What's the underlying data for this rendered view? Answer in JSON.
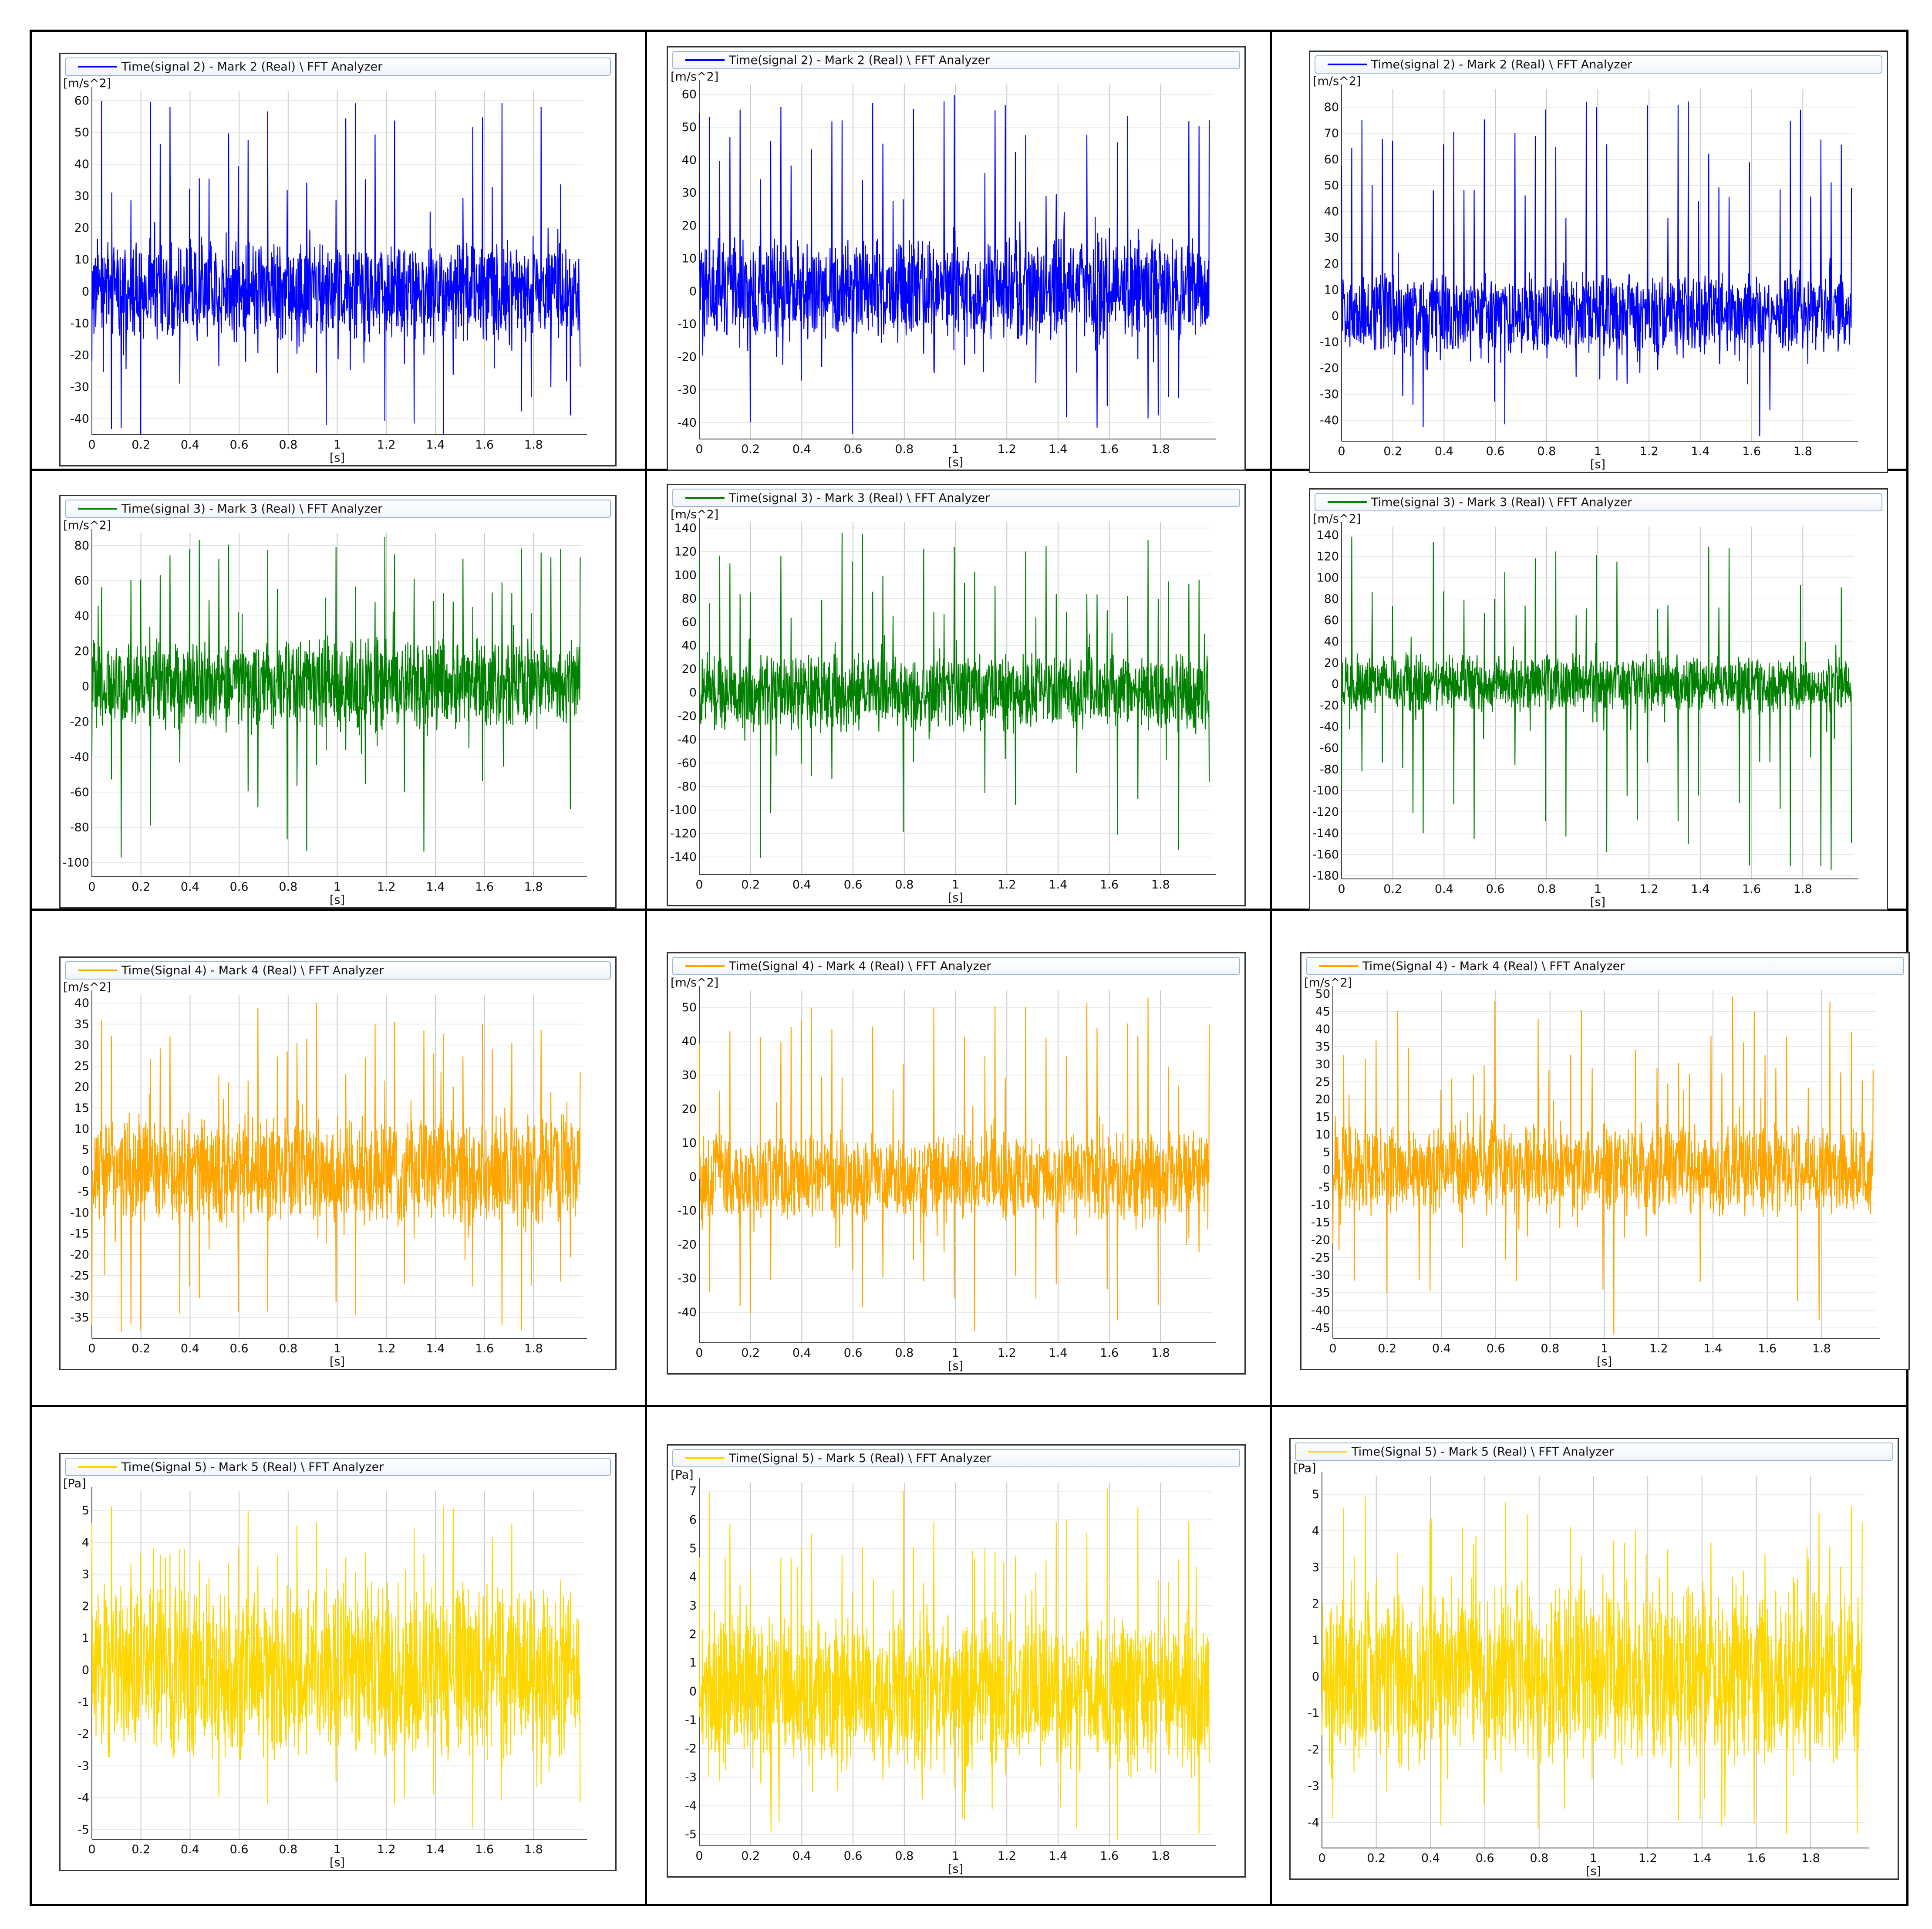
{
  "chart_data": [
    {
      "type": "line",
      "legend": "Time(signal 2) - Mark 2 (Real) \\ FFT Analyzer",
      "ylabel": "[m/s^2]",
      "xlabel": "[s]",
      "color": "#0000ff",
      "yticks": [
        "60",
        "50",
        "40",
        "30",
        "20",
        "10",
        "0",
        "-10",
        "-20",
        "-30",
        "-40"
      ],
      "xticks": [
        "0",
        "0.2",
        "0.4",
        "0.6",
        "0.8",
        "1",
        "1.2",
        "1.4",
        "1.6",
        "1.8"
      ],
      "xlim": [
        0,
        2
      ],
      "ylim": [
        -45,
        63
      ],
      "band": [
        -14,
        15
      ],
      "peak_max": 60,
      "peak_min": -45,
      "grid": "on"
    },
    {
      "type": "line",
      "legend": "Time(signal 2) - Mark 2 (Real) \\ FFT Analyzer",
      "ylabel": "[m/s^2]",
      "xlabel": "[s]",
      "color": "#0000ff",
      "yticks": [
        "60",
        "50",
        "40",
        "30",
        "20",
        "10",
        "0",
        "-10",
        "-20",
        "-30",
        "-40"
      ],
      "xticks": [
        "0",
        "0.2",
        "0.4",
        "0.6",
        "0.8",
        "1",
        "1.2",
        "1.4",
        "1.6",
        "1.8"
      ],
      "xlim": [
        0,
        2
      ],
      "ylim": [
        -45,
        63
      ],
      "band": [
        -14,
        15
      ],
      "peak_max": 60,
      "peak_min": -45,
      "grid": "on"
    },
    {
      "type": "line",
      "legend": "Time(signal 2) - Mark 2 (Real) \\ FFT Analyzer",
      "ylabel": "[m/s^2]",
      "xlabel": "[s]",
      "color": "#0000ff",
      "yticks": [
        "80",
        "70",
        "60",
        "50",
        "40",
        "30",
        "20",
        "10",
        "0",
        "-10",
        "-20",
        "-30",
        "-40"
      ],
      "xticks": [
        "0",
        "0.2",
        "0.4",
        "0.6",
        "0.8",
        "1",
        "1.2",
        "1.4",
        "1.6",
        "1.8"
      ],
      "xlim": [
        0,
        2
      ],
      "ylim": [
        -48,
        87
      ],
      "band": [
        -14,
        15
      ],
      "peak_max": 83,
      "peak_min": -48,
      "grid": "on"
    },
    {
      "type": "line",
      "legend": "Time(signal 3) - Mark 3 (Real) \\ FFT Analyzer",
      "ylabel": "[m/s^2]",
      "xlabel": "[s]",
      "color": "#008000",
      "yticks": [
        "80",
        "60",
        "40",
        "20",
        "0",
        "-20",
        "-40",
        "-60",
        "-80",
        "-100"
      ],
      "xticks": [
        "0",
        "0.2",
        "0.4",
        "0.6",
        "0.8",
        "1",
        "1.2",
        "1.4",
        "1.6",
        "1.8"
      ],
      "xlim": [
        0,
        2
      ],
      "ylim": [
        -108,
        87
      ],
      "band": [
        -22,
        25
      ],
      "peak_max": 85,
      "peak_min": -100,
      "grid": "on"
    },
    {
      "type": "line",
      "legend": "Time(signal 3) - Mark 3 (Real) \\ FFT Analyzer",
      "ylabel": "[m/s^2]",
      "xlabel": "[s]",
      "color": "#008000",
      "yticks": [
        "140",
        "120",
        "100",
        "80",
        "60",
        "40",
        "20",
        "0",
        "-20",
        "-40",
        "-60",
        "-80",
        "-100",
        "-120",
        "-140"
      ],
      "xticks": [
        "0",
        "0.2",
        "0.4",
        "0.6",
        "0.8",
        "1",
        "1.2",
        "1.4",
        "1.6",
        "1.8"
      ],
      "xlim": [
        0,
        2
      ],
      "ylim": [
        -155,
        145
      ],
      "band": [
        -30,
        30
      ],
      "peak_max": 138,
      "peak_min": -150,
      "grid": "on"
    },
    {
      "type": "line",
      "legend": "Time(signal 3) - Mark 3 (Real) \\ FFT Analyzer",
      "ylabel": "[m/s^2]",
      "xlabel": "[s]",
      "color": "#008000",
      "yticks": [
        "140",
        "120",
        "100",
        "80",
        "60",
        "40",
        "20",
        "0",
        "-20",
        "-40",
        "-60",
        "-80",
        "-100",
        "-120",
        "-140",
        "-160",
        "-180"
      ],
      "xticks": [
        "0",
        "0.2",
        "0.4",
        "0.6",
        "0.8",
        "1",
        "1.2",
        "1.4",
        "1.6",
        "1.8"
      ],
      "xlim": [
        0,
        2
      ],
      "ylim": [
        -183,
        148
      ],
      "band": [
        -25,
        25
      ],
      "peak_max": 140,
      "peak_min": -180,
      "grid": "on"
    },
    {
      "type": "line",
      "legend": "Time(Signal 4) - Mark 4 (Real) \\ FFT Analyzer",
      "ylabel": "[m/s^2]",
      "xlabel": "[s]",
      "color": "#ffa500",
      "yticks": [
        "40",
        "35",
        "30",
        "25",
        "20",
        "15",
        "10",
        "5",
        "0",
        "-5",
        "-10",
        "-15",
        "-20",
        "-25",
        "-30",
        "-35"
      ],
      "xticks": [
        "0",
        "0.2",
        "0.4",
        "0.6",
        "0.8",
        "1",
        "1.2",
        "1.4",
        "1.6",
        "1.8"
      ],
      "xlim": [
        0,
        2
      ],
      "ylim": [
        -40,
        42
      ],
      "band": [
        -12,
        12
      ],
      "peak_max": 41,
      "peak_min": -39,
      "grid": "on"
    },
    {
      "type": "line",
      "legend": "Time(Signal 4) - Mark 4 (Real) \\ FFT Analyzer",
      "ylabel": "[m/s^2]",
      "xlabel": "[s]",
      "color": "#ffa500",
      "yticks": [
        "50",
        "40",
        "30",
        "20",
        "10",
        "0",
        "-10",
        "-20",
        "-30",
        "-40"
      ],
      "xticks": [
        "0",
        "0.2",
        "0.4",
        "0.6",
        "0.8",
        "1",
        "1.2",
        "1.4",
        "1.6",
        "1.8"
      ],
      "xlim": [
        0,
        2
      ],
      "ylim": [
        -49,
        55
      ],
      "band": [
        -12,
        12
      ],
      "peak_max": 53,
      "peak_min": -47,
      "grid": "on"
    },
    {
      "type": "line",
      "legend": "Time(Signal 4) - Mark 4 (Real) \\ FFT Analyzer",
      "ylabel": "[m/s^2]",
      "xlabel": "[s]",
      "color": "#ffa500",
      "yticks": [
        "50",
        "45",
        "40",
        "35",
        "30",
        "25",
        "20",
        "15",
        "10",
        "5",
        "0",
        "-5",
        "-10",
        "-15",
        "-20",
        "-25",
        "-30",
        "-35",
        "-40",
        "-45"
      ],
      "xticks": [
        "0",
        "0.2",
        "0.4",
        "0.6",
        "0.8",
        "1",
        "1.2",
        "1.4",
        "1.6",
        "1.8"
      ],
      "xlim": [
        0,
        2
      ],
      "ylim": [
        -48,
        51
      ],
      "band": [
        -12,
        12
      ],
      "peak_max": 50,
      "peak_min": -47,
      "grid": "on"
    },
    {
      "type": "line",
      "legend": "Time(Signal 5) - Mark 5 (Real) \\ FFT Analyzer",
      "ylabel": "[Pa]",
      "xlabel": "[s]",
      "color": "#ffd700",
      "yticks": [
        "5",
        "4",
        "3",
        "2",
        "1",
        "0",
        "-1",
        "-2",
        "-3",
        "-4",
        "-5"
      ],
      "xticks": [
        "0",
        "0.2",
        "0.4",
        "0.6",
        "0.8",
        "1",
        "1.2",
        "1.4",
        "1.6",
        "1.8"
      ],
      "xlim": [
        0,
        2
      ],
      "ylim": [
        -5.3,
        5.6
      ],
      "band": [
        -2.5,
        2.5
      ],
      "peak_max": 5.3,
      "peak_min": -5.1,
      "grid": "on"
    },
    {
      "type": "line",
      "legend": "Time(Signal 5) - Mark 5 (Real) \\ FFT Analyzer",
      "ylabel": "[Pa]",
      "xlabel": "[s]",
      "color": "#ffd700",
      "yticks": [
        "7",
        "6",
        "5",
        "4",
        "3",
        "2",
        "1",
        "0",
        "-1",
        "-2",
        "-3",
        "-4",
        "-5"
      ],
      "xticks": [
        "0",
        "0.2",
        "0.4",
        "0.6",
        "0.8",
        "1",
        "1.2",
        "1.4",
        "1.6",
        "1.8"
      ],
      "xlim": [
        0,
        2
      ],
      "ylim": [
        -5.4,
        7.3
      ],
      "band": [
        -2.5,
        2.5
      ],
      "peak_max": 7.1,
      "peak_min": -5.2,
      "grid": "on"
    },
    {
      "type": "line",
      "legend": "Time(Signal 5) - Mark 5 (Real) \\ FFT Analyzer",
      "ylabel": "[Pa]",
      "xlabel": "[s]",
      "color": "#ffd700",
      "yticks": [
        "5",
        "4",
        "3",
        "2",
        "1",
        "0",
        "-1",
        "-2",
        "-3",
        "-4"
      ],
      "xticks": [
        "0",
        "0.2",
        "0.4",
        "0.6",
        "0.8",
        "1",
        "1.2",
        "1.4",
        "1.6",
        "1.8"
      ],
      "xlim": [
        0,
        2
      ],
      "ylim": [
        -4.7,
        5.5
      ],
      "band": [
        -2.3,
        2.3
      ],
      "peak_max": 5.1,
      "peak_min": -4.6,
      "grid": "on"
    }
  ]
}
